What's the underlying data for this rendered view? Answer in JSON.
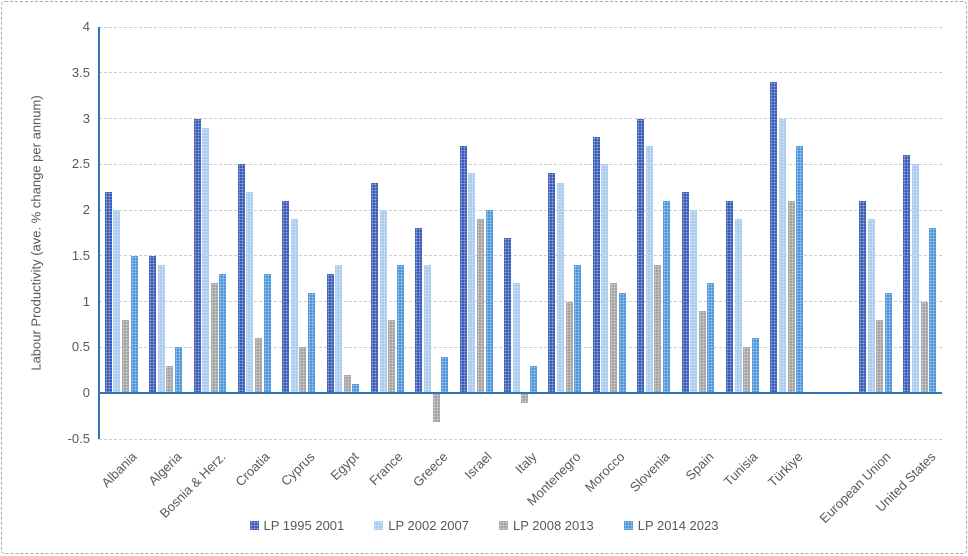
{
  "chart_data": {
    "type": "bar",
    "title": "",
    "xlabel": "",
    "ylabel": "Labour Productivity  (ave. % change per annum)",
    "ylim": [
      -0.5,
      4
    ],
    "yticks": [
      4,
      3.5,
      3,
      2.5,
      2,
      1.5,
      1,
      0.5,
      0,
      -0.5
    ],
    "grid": true,
    "grid_style": "dashed",
    "legend_position": "bottom",
    "gap_after_index": 15,
    "categories": [
      "Albania",
      "Algeria",
      "Bosnia & Herz.",
      "Croatia",
      "Cyprus",
      "Egypt",
      "France",
      "Greece",
      "Israel",
      "Italy",
      "Montenegro",
      "Morocco",
      "Slovenia",
      "Spain",
      "Tunisia",
      "Türkiye",
      "European Union",
      "United States"
    ],
    "series": [
      {
        "name": "LP 1995 2001",
        "color": "#3A5BB8",
        "values": [
          2.2,
          1.5,
          3.0,
          2.5,
          2.1,
          1.3,
          2.3,
          1.8,
          2.7,
          1.7,
          2.4,
          2.8,
          3.0,
          2.2,
          2.1,
          3.4,
          2.1,
          2.6
        ]
      },
      {
        "name": "LP 2002 2007",
        "color": "#A9CBEF",
        "values": [
          2.0,
          1.4,
          2.9,
          2.2,
          1.9,
          1.4,
          2.0,
          1.4,
          2.4,
          1.2,
          2.3,
          2.5,
          2.7,
          2.0,
          1.9,
          3.0,
          1.9,
          2.5
        ]
      },
      {
        "name": "LP 2008 2013",
        "color": "#A4A4A4",
        "values": [
          0.8,
          0.3,
          1.2,
          0.6,
          0.5,
          0.2,
          0.8,
          -0.3,
          1.9,
          -0.1,
          1.0,
          1.2,
          1.4,
          0.9,
          0.5,
          2.1,
          0.8,
          1.0
        ]
      },
      {
        "name": "LP 2014 2023",
        "color": "#4C97DB",
        "values": [
          1.5,
          0.5,
          1.3,
          1.3,
          1.1,
          0.1,
          1.4,
          0.4,
          2.0,
          0.3,
          1.4,
          1.1,
          2.1,
          1.2,
          0.6,
          2.7,
          1.1,
          1.8
        ]
      }
    ],
    "colors": {
      "axis_line": "#2E75B6",
      "gridline": "#CDCDCD",
      "text": "#595959",
      "border": "#ABABAB"
    }
  }
}
